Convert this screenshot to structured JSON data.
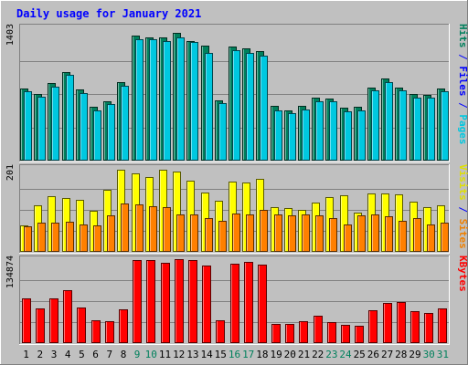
{
  "chart_data": {
    "type": "bar",
    "title": "Daily usage for January 2021",
    "days": [
      "1",
      "2",
      "3",
      "4",
      "5",
      "6",
      "7",
      "8",
      "9",
      "10",
      "11",
      "12",
      "13",
      "14",
      "15",
      "16",
      "17",
      "18",
      "19",
      "20",
      "21",
      "22",
      "23",
      "24",
      "25",
      "26",
      "27",
      "28",
      "29",
      "30",
      "31"
    ],
    "weekend_days": [
      "9",
      "10",
      "16",
      "17",
      "23",
      "24",
      "30",
      "31"
    ],
    "panels": [
      {
        "id": "hits",
        "ymax": 1403,
        "ymax_label": "1403",
        "right_labels": [
          {
            "text": "Hits",
            "color": "#00805c"
          },
          {
            "text": " / ",
            "color": "#0000ff"
          },
          {
            "text": "Files",
            "color": "#0000ff"
          },
          {
            "text": " / ",
            "color": "#0000ff"
          },
          {
            "text": "Pages",
            "color": "#00c8e0"
          }
        ],
        "series": [
          {
            "name": "Hits",
            "color": "#00805c",
            "values": [
              760,
              706,
              814,
              930,
              750,
              566,
              623,
              822,
              1320,
              1300,
              1293,
              1346,
              1263,
              1208,
              637,
              1200,
              1180,
              1150,
              578,
              530,
              572,
              660,
              652,
              555,
              570,
              772,
              862,
              770,
              697,
              690,
              762
            ]
          },
          {
            "name": "Files",
            "color": "#00c8e0",
            "values": [
              730,
              673,
              780,
              900,
              712,
              533,
              596,
              785,
              1280,
              1280,
              1255,
              1300,
              1250,
              1138,
              607,
              1160,
              1135,
              1105,
              530,
              498,
              540,
              626,
              627,
              515,
              530,
              742,
              830,
              740,
              665,
              660,
              730
            ]
          }
        ]
      },
      {
        "id": "visits",
        "ymax": 201,
        "ymax_label": "201",
        "right_labels": [
          {
            "text": "Visits",
            "color": "#e0e000"
          },
          {
            "text": " / ",
            "color": "#0000ff"
          },
          {
            "text": "Sites",
            "color": "#f08000"
          }
        ],
        "series": [
          {
            "name": "Visits",
            "color": "#ffff00",
            "values": [
              63,
              112,
              133,
              129,
              125,
              98,
              149,
              196,
              188,
              180,
              196,
              192,
              170,
              141,
              123,
              169,
              167,
              175,
              108,
              105,
              100,
              118,
              132,
              135,
              93,
              140,
              140,
              138,
              120,
              108,
              112
            ]
          },
          {
            "name": "Sites",
            "color": "#ff8000",
            "values": [
              62,
              70,
              70,
              72,
              65,
              64,
              88,
              116,
              113,
              110,
              107,
              89,
              89,
              80,
              74,
              91,
              90,
              101,
              90,
              88,
              90,
              88,
              81,
              65,
              88,
              90,
              86,
              75,
              80,
              66,
              69
            ]
          }
        ]
      },
      {
        "id": "kbytes",
        "ymax": 134874,
        "ymax_label": "134874",
        "right_labels": [
          {
            "text": "KBytes",
            "color": "#ff0000"
          }
        ],
        "series": [
          {
            "name": "KBytes",
            "color": "#ff0000",
            "values": [
              71500,
              55000,
              71500,
              85700,
              56800,
              37000,
              34800,
              54100,
              134000,
              134000,
              128400,
              134400,
              133100,
              124300,
              37200,
              127600,
              129900,
              126500,
              31000,
              31300,
              35700,
              43400,
              33100,
              29200,
              27900,
              52800,
              64400,
              65800,
              51500,
              47800,
              56100
            ]
          }
        ]
      }
    ]
  }
}
